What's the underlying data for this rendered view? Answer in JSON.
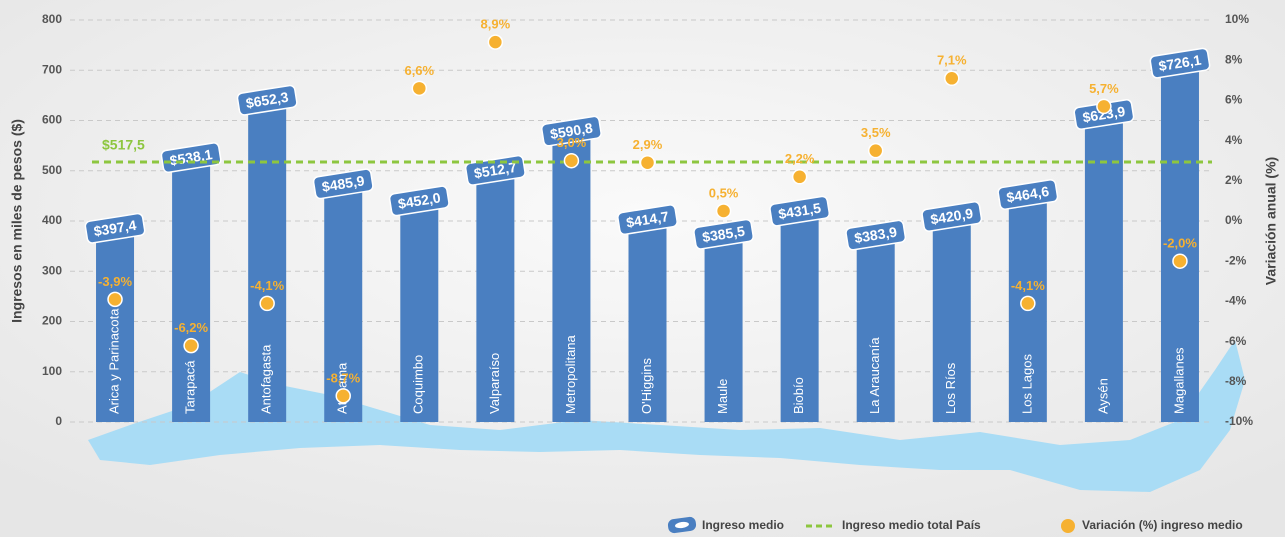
{
  "chart_data": {
    "type": "bar",
    "categories": [
      "Arica y Parinacota",
      "Tarapacá",
      "Antofagasta",
      "Atacama",
      "Coquimbo",
      "Valparaíso",
      "Metropolitana",
      "O'Higgins",
      "Maule",
      "Biobío",
      "La Araucanía",
      "Los Ríos",
      "Los Lagos",
      "Aysén",
      "Magallanes"
    ],
    "series": [
      {
        "name": "Ingreso medio",
        "type": "bar",
        "color": "#4a7fc1",
        "values": [
          397.4,
          538.1,
          652.3,
          485.9,
          452.0,
          512.7,
          590.8,
          414.7,
          385.5,
          431.5,
          383.9,
          420.9,
          464.6,
          623.9,
          726.1
        ],
        "value_labels": [
          "$397,4",
          "$538,1",
          "$652,3",
          "$485,9",
          "$452,0",
          "$512,7",
          "$590,8",
          "$414,7",
          "$385,5",
          "$431,5",
          "$383,9",
          "$420,9",
          "$464,6",
          "$623,9",
          "$726,1"
        ]
      },
      {
        "name": "Variación (%) ingreso medio",
        "type": "scatter",
        "axis": "y2",
        "color": "#f6b131",
        "values": [
          -3.9,
          -6.2,
          -4.1,
          -8.7,
          6.6,
          8.9,
          3.0,
          2.9,
          0.5,
          2.2,
          3.5,
          7.1,
          -4.1,
          5.7,
          -2.0
        ],
        "value_labels": [
          "-3,9%",
          "-6,2%",
          "-4,1%",
          "-8,7%",
          "6,6%",
          "8,9%",
          "3,0%",
          "2,9%",
          "0,5%",
          "2,2%",
          "3,5%",
          "7,1%",
          "-4,1%",
          "5,7%",
          "-2,0%"
        ]
      }
    ],
    "reference_line": {
      "name": "Ingreso medio total País",
      "value": 517.5,
      "label": "$517,5",
      "color": "#8dc63f"
    },
    "ylabel": "Ingresos en miles de pesos ($)",
    "y2label": "Variación anual (%)",
    "ylim": [
      0,
      800
    ],
    "yticks": [
      0,
      100,
      200,
      300,
      400,
      500,
      600,
      700,
      800
    ],
    "y2lim": [
      -10,
      10
    ],
    "y2ticks": [
      {
        "value": -10,
        "label": "-10%"
      },
      {
        "value": -8,
        "label": "-8%"
      },
      {
        "value": -6,
        "label": "-6%"
      },
      {
        "value": -4,
        "label": "-4%"
      },
      {
        "value": -2,
        "label": "-2%"
      },
      {
        "value": 0,
        "label": "0%"
      },
      {
        "value": 2,
        "label": "2%"
      },
      {
        "value": 4,
        "label": "4%"
      },
      {
        "value": 6,
        "label": "6%"
      },
      {
        "value": 8,
        "label": "8%"
      },
      {
        "value": 10,
        "label": "10%"
      }
    ],
    "grid": true
  }
}
